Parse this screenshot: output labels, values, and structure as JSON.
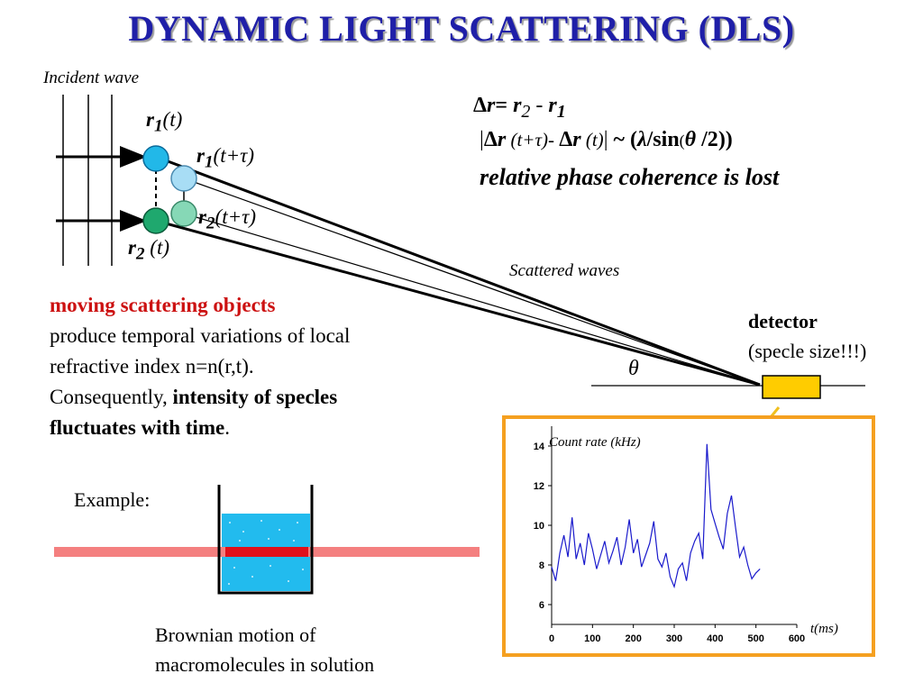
{
  "title": "DYNAMIC LIGHT SCATTERING (DLS)",
  "labels": {
    "incident": "Incident wave",
    "scattered": "Scattered waves",
    "theta": "θ",
    "r1t": {
      "sym": "r",
      "sub": "1",
      "arg": "(t)"
    },
    "r1tt": {
      "sym": "r",
      "sub": "1",
      "arg": "(t+τ)"
    },
    "r2tt": {
      "sym": "r",
      "sub": "2",
      "arg": "(t+τ)"
    },
    "r2t": {
      "sym": "r",
      "sub": "2",
      "arg": " (t)"
    }
  },
  "equations": {
    "line1": {
      "delta": "Δ",
      "r": "r",
      "eq": "= ",
      "r2": "r",
      "s2": "2",
      "minus": " - ",
      "r1": "r",
      "s1": "1"
    },
    "line2": {
      "open": "|",
      "delta1": "Δ",
      "r_a": "r",
      "arg1": " (t+τ)- ",
      "delta2": "Δ",
      "r_b": "r",
      "arg2": " (t)",
      "close": "|",
      "sim": " ~ (",
      "lambda": "λ",
      "sin": "/sin",
      "thetaparen": "(",
      "theta": "θ",
      "half": " /2",
      "end": "))"
    },
    "line3": "relative phase coherence is lost"
  },
  "body": {
    "heading": "moving scattering objects",
    "line1": "produce temporal variations of local",
    "line2": "refractive index n=n(r,t).",
    "line3_prefix": "Consequently, ",
    "line3_bold": "intensity of specles",
    "line4_bold": "fluctuates with time",
    "line4_end": "."
  },
  "detector": {
    "title": "detector",
    "note": "(specle size!!!)"
  },
  "example": "Example:",
  "brownian": {
    "line1": "Brownian motion of",
    "line2": "macromolecules in solution"
  },
  "colors": {
    "title": "#1f1fa8",
    "highlight": "#cc1111",
    "frame": "#f5a020",
    "detector_fill": "#ffcc00",
    "series": "#1a1acc",
    "solution": "#22bbee",
    "beam": "#f47f7f"
  },
  "chart_data": {
    "type": "line",
    "title": "Count rate (kHz)",
    "xlabel": "t(ms)",
    "ylabel": "",
    "xlim": [
      0,
      600
    ],
    "ylim": [
      5,
      15
    ],
    "x_ticks": [
      "0",
      "100",
      "200",
      "300",
      "400",
      "500",
      "600"
    ],
    "y_ticks": [
      "6",
      "8",
      "10",
      "12",
      "14"
    ],
    "grid": false,
    "series": [
      {
        "x": [
          0,
          10,
          20,
          30,
          40,
          50,
          60,
          70,
          80,
          90,
          100,
          110,
          120,
          130,
          140,
          150,
          160,
          170,
          180,
          190,
          200,
          210,
          220,
          230,
          240,
          250,
          260,
          270,
          280,
          290,
          300,
          310,
          320,
          330,
          340,
          350,
          360,
          370,
          380,
          390,
          400,
          410,
          420,
          430,
          440,
          450,
          460,
          470,
          480,
          490,
          500,
          510
        ],
        "y": [
          7.9,
          7.2,
          8.6,
          9.5,
          8.4,
          10.4,
          8.3,
          9.1,
          8.0,
          9.6,
          8.8,
          7.8,
          8.5,
          9.2,
          8.1,
          8.7,
          9.4,
          8.0,
          8.9,
          10.3,
          8.6,
          9.3,
          7.9,
          8.5,
          9.1,
          10.2,
          8.3,
          7.9,
          8.6,
          7.4,
          6.9,
          7.8,
          8.1,
          7.2,
          8.6,
          9.2,
          9.6,
          8.3,
          14.1,
          10.8,
          10.1,
          9.4,
          8.8,
          10.6,
          11.5,
          9.9,
          8.4,
          8.9,
          8.0,
          7.3,
          7.6,
          7.8
        ]
      }
    ]
  }
}
